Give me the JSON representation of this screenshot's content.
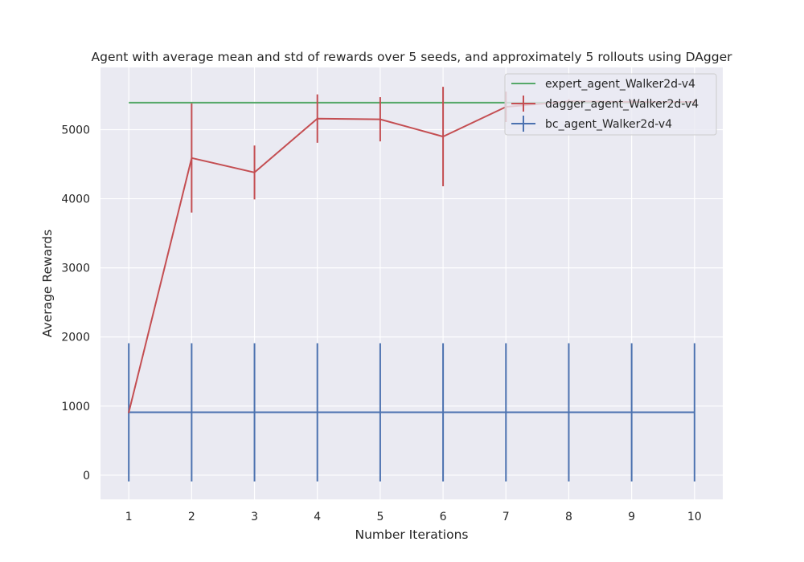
{
  "chart_data": {
    "type": "line",
    "title": "Agent with average mean and std of rewards over 5 seeds, and approximately 5 rollouts using DAgger",
    "xlabel": "Number Iterations",
    "ylabel": "Average Rewards",
    "xlim": [
      0.55,
      10.45
    ],
    "ylim": [
      -350,
      5900
    ],
    "xticks": [
      1,
      2,
      3,
      4,
      5,
      6,
      7,
      8,
      9,
      10
    ],
    "yticks": [
      0,
      1000,
      2000,
      3000,
      4000,
      5000
    ],
    "grid": true,
    "legend_position": "top-right",
    "x": [
      1,
      2,
      3,
      4,
      5,
      6,
      7,
      8,
      9,
      10
    ],
    "series": [
      {
        "name": "expert_agent_Walker2d-v4",
        "color": "#55a868",
        "values": [
          5390,
          5390,
          5390,
          5390,
          5390,
          5390,
          5390,
          5390,
          5390,
          5390
        ]
      },
      {
        "name": "dagger_agent_Walker2d-v4",
        "color": "#c44e52",
        "values": [
          910,
          4590,
          4380,
          5160,
          5150,
          4900,
          5330,
          5410,
          5400,
          5400
        ],
        "std": [
          10,
          790,
          390,
          350,
          320,
          720,
          220,
          30,
          30,
          30
        ]
      },
      {
        "name": "bc_agent_Walker2d-v4",
        "color": "#4c72b0",
        "values": [
          910,
          910,
          910,
          910,
          910,
          910,
          910,
          910,
          910,
          910
        ],
        "std": [
          1000,
          1000,
          1000,
          1000,
          1000,
          1000,
          1000,
          1000,
          1000,
          1000
        ]
      }
    ]
  }
}
